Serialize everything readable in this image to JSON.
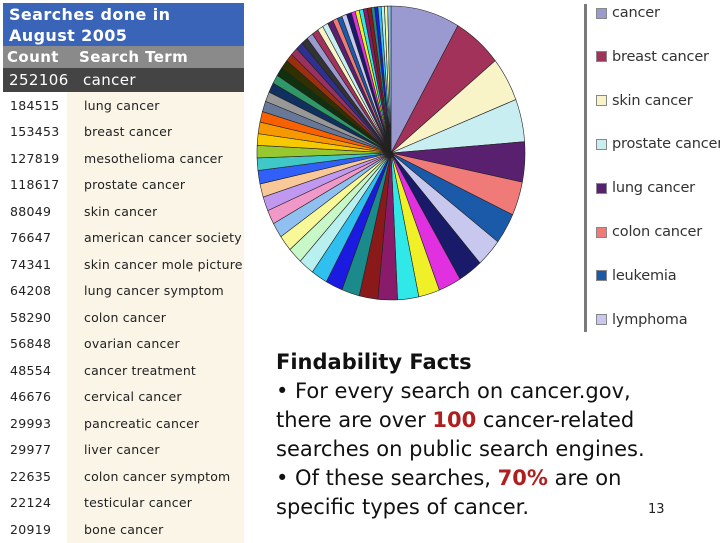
{
  "table": {
    "title": "Searches done in\nAugust 2005",
    "col_count": "Count",
    "col_term": "Search Term",
    "top_row": {
      "count": "252106",
      "term": "cancer"
    },
    "rows": [
      {
        "count": "184515",
        "term": "lung cancer"
      },
      {
        "count": "153453",
        "term": "breast cancer"
      },
      {
        "count": "127819",
        "term": "mesothelioma cancer"
      },
      {
        "count": "118617",
        "term": "prostate cancer"
      },
      {
        "count": "88049",
        "term": "skin cancer"
      },
      {
        "count": "76647",
        "term": "american cancer society"
      },
      {
        "count": "74341",
        "term": "skin cancer mole picture"
      },
      {
        "count": "64208",
        "term": "lung cancer symptom"
      },
      {
        "count": "58290",
        "term": "colon cancer"
      },
      {
        "count": "56848",
        "term": "ovarian cancer"
      },
      {
        "count": "48554",
        "term": "cancer treatment"
      },
      {
        "count": "46676",
        "term": "cervical cancer"
      },
      {
        "count": "29993",
        "term": "pancreatic cancer"
      },
      {
        "count": "29977",
        "term": "liver cancer"
      },
      {
        "count": "22635",
        "term": "colon cancer symptom"
      },
      {
        "count": "22124",
        "term": "testicular cancer"
      },
      {
        "count": "20919",
        "term": "bone cancer"
      }
    ]
  },
  "chart_data": {
    "type": "pie",
    "legend_position": "right",
    "legend": [
      {
        "name": "cancer",
        "color": "#9a9ad0"
      },
      {
        "name": "breast cancer",
        "color": "#a3325a"
      },
      {
        "name": "skin cancer",
        "color": "#f8f4c8"
      },
      {
        "name": "prostate cancer",
        "color": "#c8eef2"
      },
      {
        "name": "lung cancer",
        "color": "#5a2070"
      },
      {
        "name": "colon cancer",
        "color": "#f07a78"
      },
      {
        "name": "leukemia",
        "color": "#1a5aa8"
      },
      {
        "name": "lymphoma",
        "color": "#c8c8ee"
      }
    ],
    "slices": [
      {
        "value": 8.5,
        "color": "#9a9ad0"
      },
      {
        "value": 6.0,
        "color": "#a3325a"
      },
      {
        "value": 5.0,
        "color": "#f8f4c8"
      },
      {
        "value": 4.8,
        "color": "#c8eef2"
      },
      {
        "value": 4.5,
        "color": "#5a2070"
      },
      {
        "value": 3.8,
        "color": "#f07a78"
      },
      {
        "value": 3.5,
        "color": "#1a5aa8"
      },
      {
        "value": 3.2,
        "color": "#c8c8ee"
      },
      {
        "value": 3.0,
        "color": "#1a1a6a"
      },
      {
        "value": 2.8,
        "color": "#e030e0"
      },
      {
        "value": 2.6,
        "color": "#f0f028"
      },
      {
        "value": 2.6,
        "color": "#30e8e8"
      },
      {
        "value": 2.4,
        "color": "#8a1a6a"
      },
      {
        "value": 2.3,
        "color": "#8a1a1a"
      },
      {
        "value": 2.2,
        "color": "#1a8a8a"
      },
      {
        "value": 2.1,
        "color": "#1a1ae0"
      },
      {
        "value": 2.0,
        "color": "#30c0f0"
      },
      {
        "value": 1.9,
        "color": "#b8f0f0"
      },
      {
        "value": 1.8,
        "color": "#c8f8c8"
      },
      {
        "value": 1.8,
        "color": "#f8f898"
      },
      {
        "value": 1.7,
        "color": "#90c0f0"
      },
      {
        "value": 1.6,
        "color": "#f098c8"
      },
      {
        "value": 1.6,
        "color": "#c098f0"
      },
      {
        "value": 1.5,
        "color": "#f8c898"
      },
      {
        "value": 1.5,
        "color": "#3060f8"
      },
      {
        "value": 1.4,
        "color": "#40c8c8"
      },
      {
        "value": 1.4,
        "color": "#98c830"
      },
      {
        "value": 1.3,
        "color": "#f8c800"
      },
      {
        "value": 1.3,
        "color": "#f89800"
      },
      {
        "value": 1.2,
        "color": "#f86000"
      },
      {
        "value": 1.2,
        "color": "#687898"
      },
      {
        "value": 1.1,
        "color": "#989898"
      },
      {
        "value": 1.1,
        "color": "#103060"
      },
      {
        "value": 1.0,
        "color": "#309868"
      },
      {
        "value": 1.0,
        "color": "#103010"
      },
      {
        "value": 1.0,
        "color": "#303000"
      },
      {
        "value": 0.9,
        "color": "#983010"
      },
      {
        "value": 0.9,
        "color": "#983060"
      },
      {
        "value": 0.9,
        "color": "#303090"
      },
      {
        "value": 0.8,
        "color": "#333333"
      },
      {
        "value": 0.8,
        "color": "#9a9ad0"
      },
      {
        "value": 0.8,
        "color": "#a3325a"
      },
      {
        "value": 0.7,
        "color": "#f8f4c8"
      },
      {
        "value": 0.7,
        "color": "#c8eef2"
      },
      {
        "value": 0.7,
        "color": "#5a2070"
      },
      {
        "value": 0.6,
        "color": "#f07a78"
      },
      {
        "value": 0.6,
        "color": "#1a5aa8"
      },
      {
        "value": 0.6,
        "color": "#c8c8ee"
      },
      {
        "value": 0.6,
        "color": "#1a1a6a"
      },
      {
        "value": 0.5,
        "color": "#e030e0"
      },
      {
        "value": 0.5,
        "color": "#f0f028"
      },
      {
        "value": 0.5,
        "color": "#30e8e8"
      },
      {
        "value": 0.5,
        "color": "#8a1a6a"
      },
      {
        "value": 0.5,
        "color": "#8a1a1a"
      },
      {
        "value": 0.4,
        "color": "#1a8a8a"
      },
      {
        "value": 0.4,
        "color": "#1a1ae0"
      },
      {
        "value": 0.4,
        "color": "#30c0f0"
      },
      {
        "value": 0.4,
        "color": "#b8f0f0"
      },
      {
        "value": 0.4,
        "color": "#f8f898"
      },
      {
        "value": 0.4,
        "color": "#90c0f0"
      }
    ]
  },
  "facts": {
    "heading": "Findability Facts",
    "line1_pre": "• For every search on cancer.gov, there are over ",
    "line1_hl": "100",
    "line1_post": " cancer-related searches on public search engines.",
    "line2_pre": "• Of these searches, ",
    "line2_hl": "70%",
    "line2_post": " are on specific types of cancer."
  },
  "page_number": "13"
}
